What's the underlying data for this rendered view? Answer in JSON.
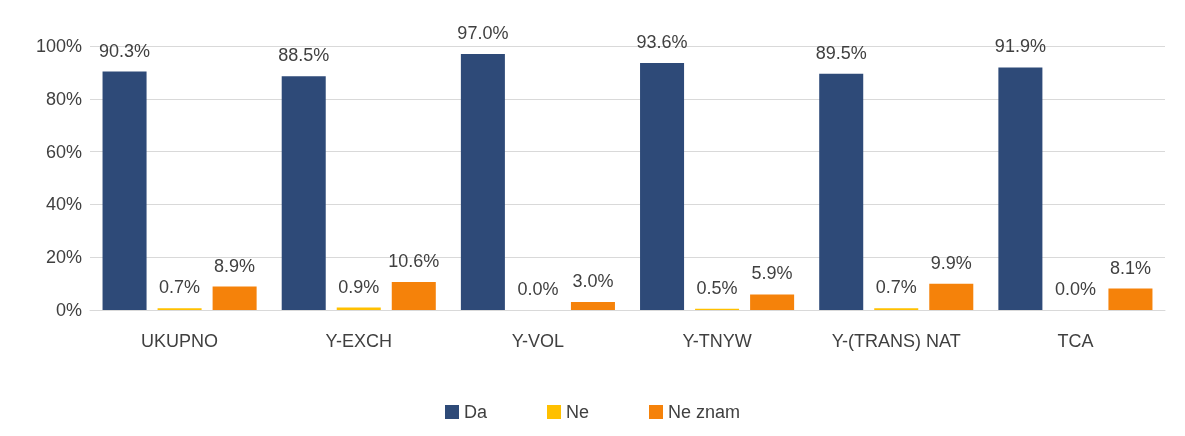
{
  "chart_data": {
    "type": "bar",
    "categories": [
      "UKUPNO",
      "Y-EXCH",
      "Y-VOL",
      "Y-TNYW",
      "Y-(TRANS) NAT",
      "TCA"
    ],
    "series": [
      {
        "name": "Da",
        "color": "#2e4a78",
        "values": [
          90.3,
          88.5,
          97.0,
          93.6,
          89.5,
          91.9
        ],
        "value_labels": [
          "90.3%",
          "88.5%",
          "97.0%",
          "93.6%",
          "89.5%",
          "91.9%"
        ]
      },
      {
        "name": "Ne",
        "color": "#ffc000",
        "values": [
          0.7,
          0.9,
          0.0,
          0.5,
          0.7,
          0.0
        ],
        "value_labels": [
          "0.7%",
          "0.9%",
          "0.0%",
          "0.5%",
          "0.7%",
          "0.0%"
        ]
      },
      {
        "name": "Ne znam",
        "color": "#f5820a",
        "values": [
          8.9,
          10.6,
          3.0,
          5.9,
          9.9,
          8.1
        ],
        "value_labels": [
          "8.9%",
          "10.6%",
          "3.0%",
          "5.9%",
          "9.9%",
          "8.1%"
        ]
      }
    ],
    "ylim": [
      0,
      100
    ],
    "yticks": [
      {
        "value": 0,
        "label": "0%"
      },
      {
        "value": 20,
        "label": "20%"
      },
      {
        "value": 40,
        "label": "40%"
      },
      {
        "value": 60,
        "label": "60%"
      },
      {
        "value": 80,
        "label": "80%"
      },
      {
        "value": 100,
        "label": "100%"
      }
    ],
    "grid": "y",
    "legend": "bottom"
  }
}
